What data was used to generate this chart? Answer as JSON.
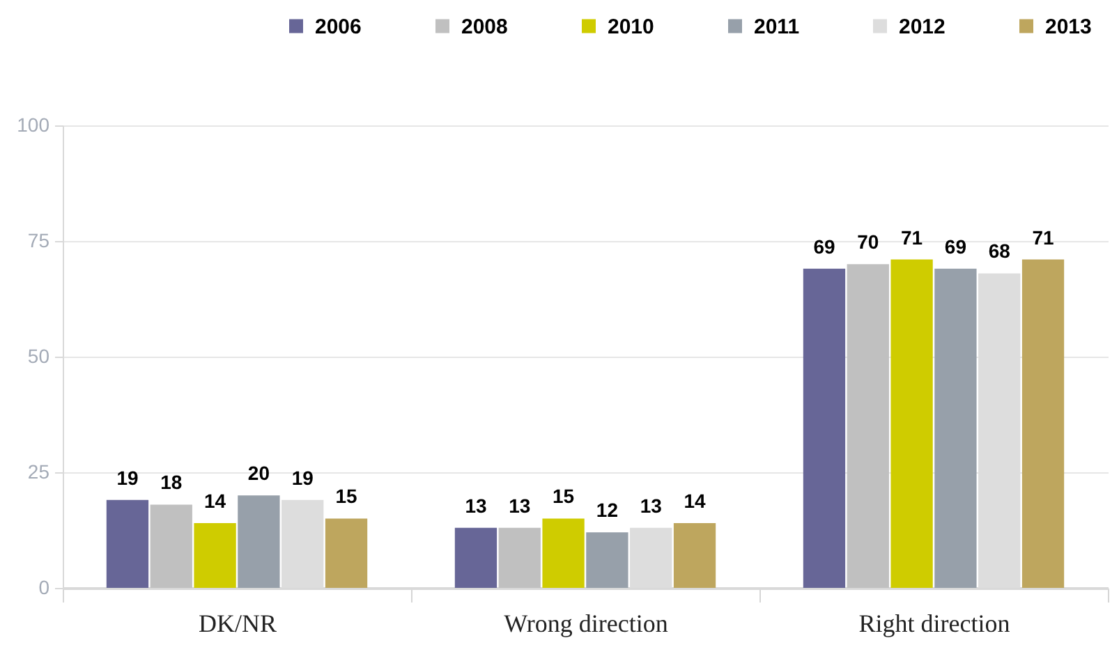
{
  "chart_data": {
    "type": "bar",
    "categories": [
      "DK/NR",
      "Wrong direction",
      "Right direction"
    ],
    "series": [
      {
        "name": "2006",
        "color": "#676697",
        "values": [
          19,
          13,
          69
        ]
      },
      {
        "name": "2008",
        "color": "#c0c0c0",
        "values": [
          18,
          13,
          70
        ]
      },
      {
        "name": "2010",
        "color": "#cfcc00",
        "values": [
          14,
          15,
          71
        ]
      },
      {
        "name": "2011",
        "color": "#97a0aa",
        "values": [
          20,
          12,
          69
        ]
      },
      {
        "name": "2012",
        "color": "#dddddd",
        "values": [
          19,
          13,
          68
        ]
      },
      {
        "name": "2013",
        "color": "#bea65e",
        "values": [
          15,
          14,
          71
        ]
      }
    ],
    "ylim": [
      0,
      100
    ],
    "yticks": [
      0,
      25,
      50,
      75,
      100
    ],
    "grid": "y",
    "legend": "top right",
    "data_labels": true
  }
}
